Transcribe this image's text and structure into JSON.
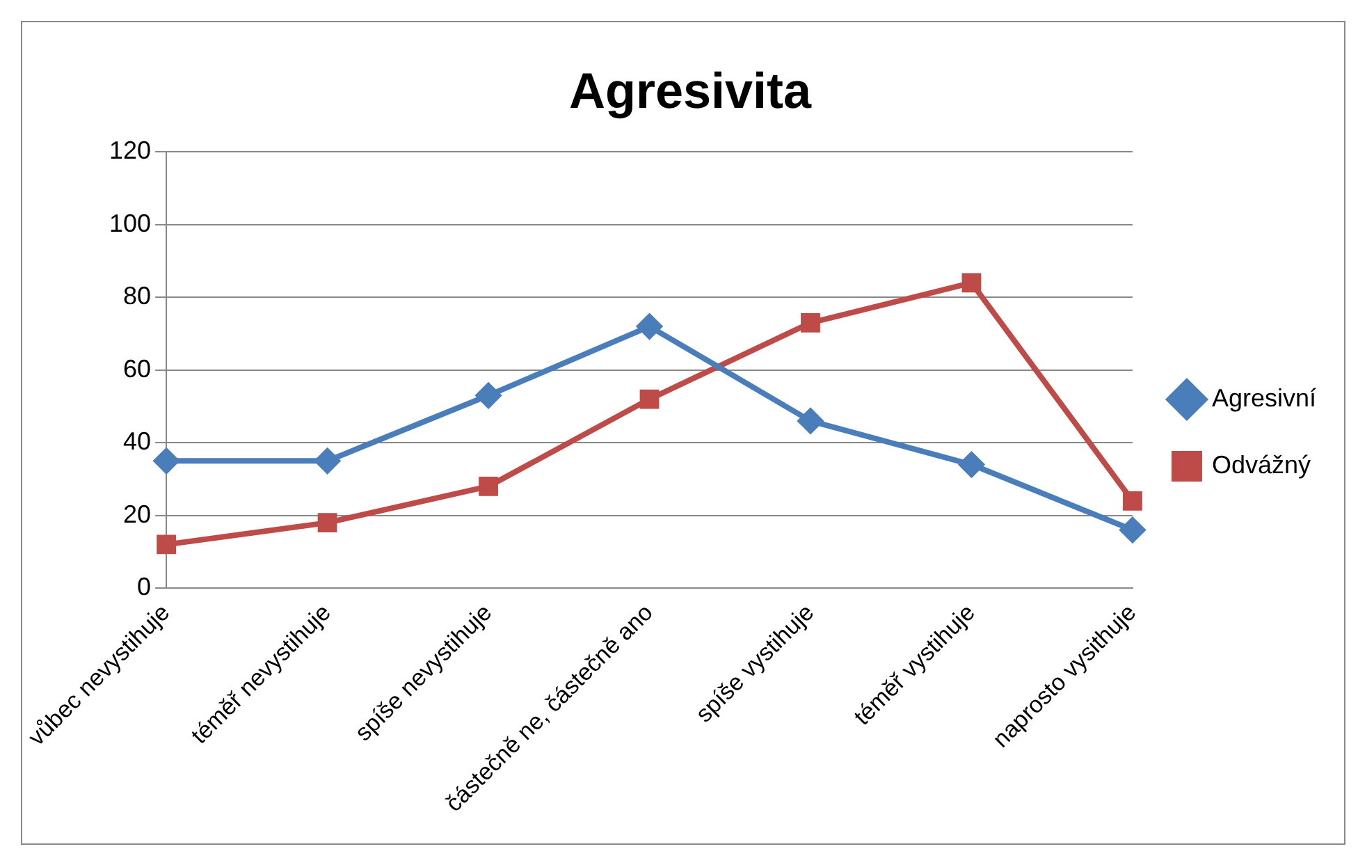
{
  "chart_data": {
    "type": "line",
    "title": "Agresivita",
    "categories": [
      "vůbec nevystihuje",
      "téměř nevystihuje",
      "spíše nevystihuje",
      "částečně ne, částečně ano",
      "spíše vystihuje",
      "téměř vystihuje",
      "naprosto vysithuje"
    ],
    "series": [
      {
        "name": "Agresivní",
        "color": "#4a7ebb",
        "marker": "diamond",
        "values": [
          35,
          35,
          53,
          72,
          46,
          34,
          16
        ]
      },
      {
        "name": "Odvážný",
        "color": "#be4b48",
        "marker": "square",
        "values": [
          12,
          18,
          28,
          52,
          73,
          84,
          24
        ]
      }
    ],
    "ylim": [
      0,
      120
    ],
    "yticks": [
      0,
      20,
      40,
      60,
      80,
      100,
      120
    ],
    "grid": "y",
    "legend": "right"
  }
}
